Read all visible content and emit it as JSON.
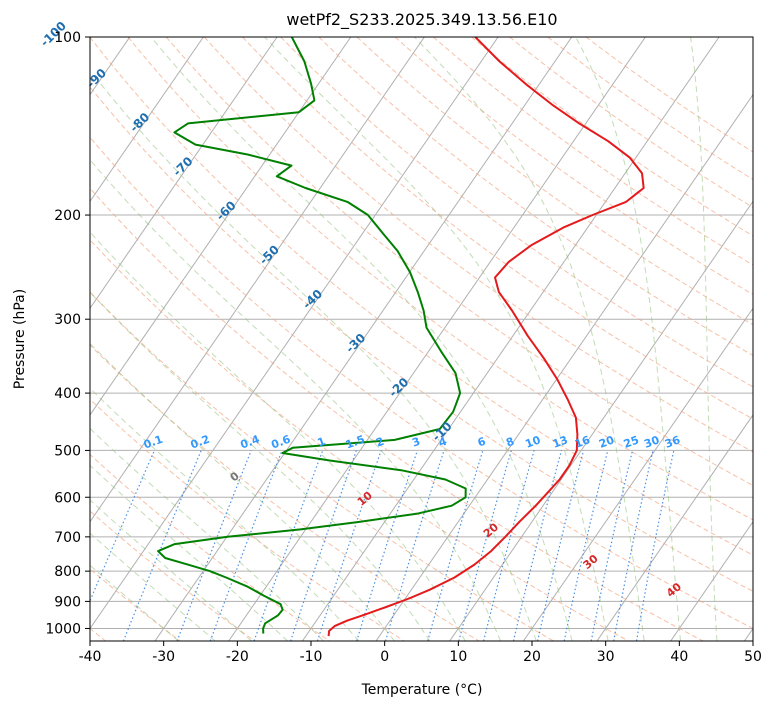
{
  "chart_data": {
    "type": "skew-t",
    "title": "wetPf2_S233.2025.349.13.56.E10",
    "xlabel": "Temperature (°C)",
    "ylabel": "Pressure (hPa)",
    "xlim": [
      -40,
      50
    ],
    "ylim": [
      1050,
      100
    ],
    "y_scale": "log",
    "grid": true,
    "x_ticks": [
      -40,
      -30,
      -20,
      -10,
      0,
      10,
      20,
      30,
      40,
      50
    ],
    "y_ticks": [
      1000,
      900,
      800,
      700,
      600,
      500,
      400,
      300,
      200,
      100
    ],
    "isotherm_labels": [
      -100,
      -90,
      -80,
      -70,
      -60,
      -50,
      -40,
      -30,
      -20,
      -10
    ],
    "mixing_ratio_labels": [
      "0.1",
      "0.2",
      "0.4",
      "0.6",
      "1",
      "1.5",
      "2",
      "3",
      "4",
      "6",
      "8",
      "10",
      "13",
      "16",
      "20",
      "25",
      "30",
      "36"
    ],
    "mixing_ratio_values": [
      0.1,
      0.2,
      0.4,
      0.6,
      1,
      1.5,
      2,
      3,
      4,
      6,
      8,
      10,
      13,
      16,
      20,
      25,
      30,
      36
    ],
    "moist_adiabat_labels": [
      "0",
      "10",
      "20",
      "30",
      "40"
    ],
    "series": [
      {
        "role": "temperature",
        "color": "#e41a1c",
        "points": [
          [
            1030,
            -6.9
          ],
          [
            1010,
            -7.3
          ],
          [
            990,
            -7.0
          ],
          [
            970,
            -5.8
          ],
          [
            950,
            -4.2
          ],
          [
            920,
            -1.8
          ],
          [
            890,
            0.5
          ],
          [
            860,
            2.5
          ],
          [
            820,
            4.7
          ],
          [
            780,
            6.2
          ],
          [
            740,
            7.2
          ],
          [
            700,
            7.8
          ],
          [
            660,
            8.3
          ],
          [
            620,
            9.0
          ],
          [
            590,
            9.4
          ],
          [
            560,
            9.8
          ],
          [
            530,
            9.8
          ],
          [
            500,
            9.4
          ],
          [
            470,
            8.0
          ],
          [
            440,
            6.2
          ],
          [
            410,
            3.4
          ],
          [
            380,
            0.2
          ],
          [
            350,
            -3.6
          ],
          [
            320,
            -8.0
          ],
          [
            290,
            -12.5
          ],
          [
            270,
            -16.0
          ],
          [
            255,
            -17.9
          ],
          [
            240,
            -17.5
          ],
          [
            225,
            -16.0
          ],
          [
            210,
            -13.3
          ],
          [
            200,
            -10.5
          ],
          [
            190,
            -7.2
          ],
          [
            180,
            -6.1
          ],
          [
            170,
            -7.7
          ],
          [
            160,
            -10.8
          ],
          [
            150,
            -15.3
          ],
          [
            140,
            -20.9
          ],
          [
            130,
            -26.4
          ],
          [
            120,
            -31.9
          ],
          [
            110,
            -37.5
          ],
          [
            100,
            -43.1
          ]
        ]
      },
      {
        "role": "dewpoint",
        "color": "#008000",
        "points": [
          [
            1020,
            -16.0
          ],
          [
            1000,
            -16.5
          ],
          [
            980,
            -16.7
          ],
          [
            950,
            -15.7
          ],
          [
            930,
            -15.6
          ],
          [
            910,
            -16.4
          ],
          [
            880,
            -19.5
          ],
          [
            850,
            -22.5
          ],
          [
            820,
            -26.3
          ],
          [
            800,
            -29.1
          ],
          [
            780,
            -32.7
          ],
          [
            760,
            -36.4
          ],
          [
            740,
            -38.0
          ],
          [
            720,
            -36.4
          ],
          [
            700,
            -29.9
          ],
          [
            680,
            -20.7
          ],
          [
            660,
            -13.3
          ],
          [
            640,
            -6.4
          ],
          [
            620,
            -2.4
          ],
          [
            600,
            -1.3
          ],
          [
            580,
            -2.1
          ],
          [
            560,
            -5.7
          ],
          [
            540,
            -12.6
          ],
          [
            520,
            -23.2
          ],
          [
            505,
            -30.3
          ],
          [
            495,
            -29.4
          ],
          [
            480,
            -16.3
          ],
          [
            460,
            -11.2
          ],
          [
            430,
            -11.0
          ],
          [
            400,
            -11.8
          ],
          [
            370,
            -14.3
          ],
          [
            340,
            -18.3
          ],
          [
            310,
            -22.5
          ],
          [
            290,
            -24.5
          ],
          [
            270,
            -27.0
          ],
          [
            250,
            -29.9
          ],
          [
            230,
            -33.6
          ],
          [
            215,
            -37.2
          ],
          [
            200,
            -41.0
          ],
          [
            190,
            -45.0
          ],
          [
            180,
            -52.0
          ],
          [
            172,
            -57.0
          ],
          [
            165,
            -56.0
          ],
          [
            158,
            -63.0
          ],
          [
            152,
            -71.0
          ],
          [
            145,
            -75.0
          ],
          [
            140,
            -74.0
          ],
          [
            134,
            -60.0
          ],
          [
            128,
            -59.0
          ],
          [
            120,
            -61.0
          ],
          [
            110,
            -64.0
          ],
          [
            100,
            -68.0
          ]
        ]
      }
    ]
  }
}
